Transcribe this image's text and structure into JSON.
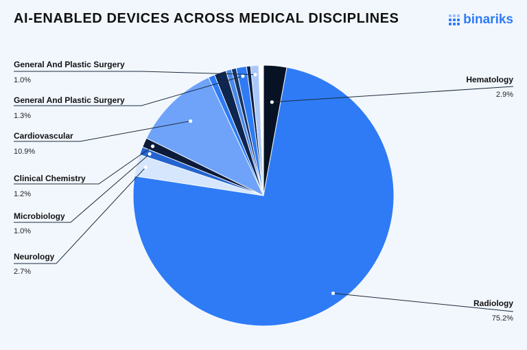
{
  "title": "AI-ENABLED DEVICES ACROSS MEDICAL DISCIPLINES",
  "logo": {
    "text": "binariks",
    "color": "#2e7bf5"
  },
  "chart_data": {
    "type": "pie",
    "title": "AI-ENABLED DEVICES ACROSS MEDICAL DISCIPLINES",
    "slices": [
      {
        "label": "Hematology",
        "value": 2.9,
        "display": "2.9%",
        "color": "#071325"
      },
      {
        "label": "Radiology",
        "value": 75.2,
        "display": "75.2%",
        "color": "#2e7bf5"
      },
      {
        "label": "Neurology",
        "value": 2.7,
        "display": "2.7%",
        "color": "#d6e6fd"
      },
      {
        "label": "Microbiology",
        "value": 1.0,
        "display": "1.0%",
        "color": "#2463d0"
      },
      {
        "label": "Clinical Chemistry",
        "value": 1.2,
        "display": "1.2%",
        "color": "#0d1b3a"
      },
      {
        "label": "Cardiovascular",
        "value": 10.9,
        "display": "10.9%",
        "color": "#6ea3f9"
      },
      {
        "label": "",
        "value": 0.8,
        "display": "",
        "color": "#2e7bf5"
      },
      {
        "label": "",
        "value": 1.5,
        "display": "",
        "color": "#0e2550"
      },
      {
        "label": "",
        "value": 0.7,
        "display": "",
        "color": "#4a88e8"
      },
      {
        "label": "",
        "value": 0.6,
        "display": "",
        "color": "#143466"
      },
      {
        "label": "General And Plastic Surgery",
        "value": 1.3,
        "display": "1.3%",
        "color": "#2e7bf5"
      },
      {
        "label": "",
        "value": 0.5,
        "display": "",
        "color": "#0d1f45"
      },
      {
        "label": "General And Plastic Surgery",
        "value": 1.0,
        "display": "1.0%",
        "color": "#a9c8f9"
      },
      {
        "label": "",
        "value": 0.6,
        "display": "",
        "color": "#ffffff"
      }
    ]
  }
}
